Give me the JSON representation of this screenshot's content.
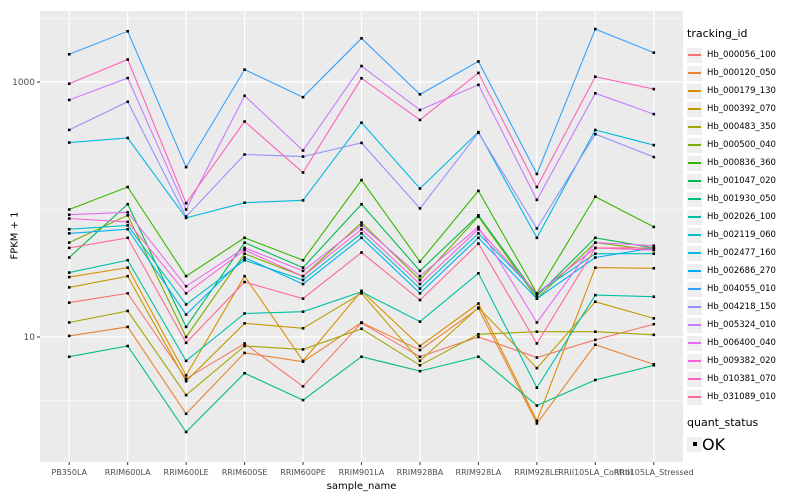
{
  "chart_data": {
    "type": "line",
    "title": "",
    "xlabel": "sample_name",
    "ylabel": "FPKM + 1",
    "y_scale": "log10",
    "y_major_ticks": [
      10,
      1000
    ],
    "y_minor_breaks": [
      3.162,
      100,
      3162
    ],
    "ylim": [
      1.05,
      3600
    ],
    "grid": "on",
    "panel_bg": "#EBEBEB",
    "grid_color": "#FFFFFF",
    "tick_text_color": "#4D4D4D",
    "x_categories": [
      "PB350LA",
      "RRIM600LA",
      "RRIM600LE",
      "RRIM600SE",
      "RRIM600PE",
      "RRIM901LA",
      "RRIM928BA",
      "RRIM928LA",
      "RRIM928LE",
      "RRII105LA_Control",
      "RRII105LA_Stressed"
    ],
    "point_marker": "black-square",
    "legend": {
      "title": "tracking_id",
      "position": "right"
    },
    "quant_status": {
      "title": "quant_status",
      "items": [
        {
          "label": "OK",
          "marker": "black-square"
        }
      ]
    },
    "series": [
      {
        "name": "Hb_000056_100",
        "color": "#F8766D",
        "values": [
          18.6,
          22,
          4.7,
          8.9,
          4.1,
          12.9,
          7.0,
          10.0,
          6.9,
          9.5,
          12.6
        ]
      },
      {
        "name": "Hb_000120_050",
        "color": "#EA8331",
        "values": [
          10.2,
          12,
          2.5,
          7.5,
          6.4,
          13,
          7.9,
          16.8,
          2.1,
          8.7,
          6.1
        ]
      },
      {
        "name": "Hb_000179_130",
        "color": "#D89000",
        "values": [
          29.5,
          35,
          5.0,
          30,
          6.5,
          23,
          8.5,
          18.3,
          2.2,
          35,
          34.6
        ]
      },
      {
        "name": "Hb_000392_070",
        "color": "#C09B00",
        "values": [
          24.5,
          30,
          4.5,
          12.8,
          11.7,
          22,
          6.5,
          17,
          5.7,
          18.9,
          14
        ]
      },
      {
        "name": "Hb_000483_350",
        "color": "#A3A500",
        "values": [
          13,
          16,
          3.5,
          8.5,
          8.0,
          11.6,
          6.0,
          10.5,
          11,
          11,
          10.4
        ]
      },
      {
        "name": "Hb_000500_040",
        "color": "#7CAE00",
        "values": [
          55,
          90,
          10,
          45,
          30,
          79,
          28,
          88,
          20,
          55,
          48
        ]
      },
      {
        "name": "Hb_000836_360",
        "color": "#39B600",
        "values": [
          100,
          150,
          30,
          60,
          40,
          170,
          39,
          140,
          22,
          126,
          73
        ]
      },
      {
        "name": "Hb_001047_020",
        "color": "#00BB4E",
        "values": [
          42,
          110,
          12,
          55,
          35,
          110,
          33,
          90,
          21,
          60,
          50
        ]
      },
      {
        "name": "Hb_001930_050",
        "color": "#00BF7D",
        "values": [
          7.0,
          8.5,
          1.8,
          5.2,
          3.2,
          7.0,
          5.4,
          7.0,
          2.9,
          4.6,
          6.0
        ]
      },
      {
        "name": "Hb_002026_100",
        "color": "#00C1A3",
        "values": [
          32,
          40,
          6.5,
          15.3,
          15.8,
          22.6,
          13.2,
          31.6,
          4.0,
          21.3,
          20.7
        ]
      },
      {
        "name": "Hb_002119_060",
        "color": "#00BFC4",
        "values": [
          70,
          75,
          18,
          40,
          28,
          65,
          24,
          65,
          22,
          45,
          45
        ]
      },
      {
        "name": "Hb_002477_160",
        "color": "#00BAE0",
        "values": [
          335,
          364,
          86,
          113,
          118,
          480,
          146,
          405,
          60,
          420,
          320
        ]
      },
      {
        "name": "Hb_002686_270",
        "color": "#00B0F6",
        "values": [
          65,
          70,
          15,
          42,
          26,
          60,
          22,
          60,
          20,
          42,
          50
        ]
      },
      {
        "name": "Hb_004055_010",
        "color": "#35A2FF",
        "values": [
          1650,
          2500,
          215,
          1250,
          760,
          2200,
          800,
          1450,
          190,
          2600,
          1700
        ]
      },
      {
        "name": "Hb_004218_150",
        "color": "#9590FF",
        "values": [
          421,
          700,
          88,
          270,
          260,
          333,
          102,
          400,
          71,
          390,
          258
        ]
      },
      {
        "name": "Hb_005324_010",
        "color": "#C77CFF",
        "values": [
          723,
          1074,
          100,
          780,
          290,
          1334,
          603,
          950,
          119,
          815,
          560
        ]
      },
      {
        "name": "Hb_006400_040",
        "color": "#E76BF3",
        "values": [
          91,
          95,
          25,
          50,
          33,
          75,
          30,
          73,
          13,
          55,
          52
        ]
      },
      {
        "name": "Hb_009382_020",
        "color": "#FA62DB",
        "values": [
          85,
          80,
          22,
          48,
          30,
          70,
          26,
          70,
          22,
          50,
          48
        ]
      },
      {
        "name": "Hb_010381_070",
        "color": "#FF62BC",
        "values": [
          970,
          1500,
          112,
          490,
          195,
          1070,
          504,
          1180,
          150,
          1100,
          880
        ]
      },
      {
        "name": "Hb_031089_010",
        "color": "#FF6A98",
        "values": [
          50,
          60,
          9.0,
          27,
          20,
          46,
          19.5,
          54,
          8.9,
          50,
          50
        ]
      }
    ]
  }
}
